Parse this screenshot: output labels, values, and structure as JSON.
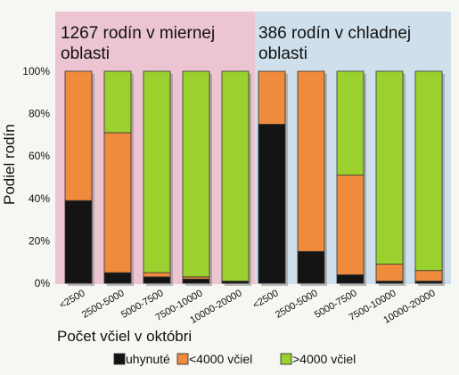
{
  "chart_data": {
    "type": "bar",
    "stacked": true,
    "ylabel": "Podiel rodín",
    "xlabel": "Počet včiel v októbri",
    "ylim": [
      0,
      100
    ],
    "y_ticks": [
      "0%",
      "20%",
      "40%",
      "60%",
      "80%",
      "100%"
    ],
    "grid": false,
    "legend_position": "bottom",
    "series_names": [
      "uhynuté",
      "<4000 včiel",
      ">4000 včiel"
    ],
    "colors": {
      "uhynute": "#141414",
      "small": "#f08a3c",
      "large": "#9bd12e",
      "panel_temperate": "#ecc4d2",
      "panel_cold": "#cfe0ec"
    },
    "panels": [
      {
        "title_line1": "1267 rodín v miernej",
        "title_line2": "oblasti",
        "categories": [
          "<2500",
          "2500-5000",
          "5000-7500",
          "7500-10000",
          "10000-20000"
        ],
        "series": [
          {
            "name": "uhynuté",
            "values": [
              39,
              5,
              3,
              2,
              1
            ]
          },
          {
            "name": "<4000 včiel",
            "values": [
              61,
              66,
              2,
              1,
              0
            ]
          },
          {
            "name": ">4000 včiel",
            "values": [
              0,
              29,
              95,
              97,
              99
            ]
          }
        ]
      },
      {
        "title_line1": "386 rodín v chladnej",
        "title_line2": "oblasti",
        "categories": [
          "<2500",
          "2500-5000",
          "5000-7500",
          "7500-10000",
          "10000-20000"
        ],
        "series": [
          {
            "name": "uhynuté",
            "values": [
              75,
              15,
              4,
              1,
              1
            ]
          },
          {
            "name": "<4000 včiel",
            "values": [
              25,
              85,
              47,
              8,
              5
            ]
          },
          {
            "name": ">4000 včiel",
            "values": [
              0,
              0,
              49,
              91,
              94
            ]
          }
        ]
      }
    ]
  }
}
